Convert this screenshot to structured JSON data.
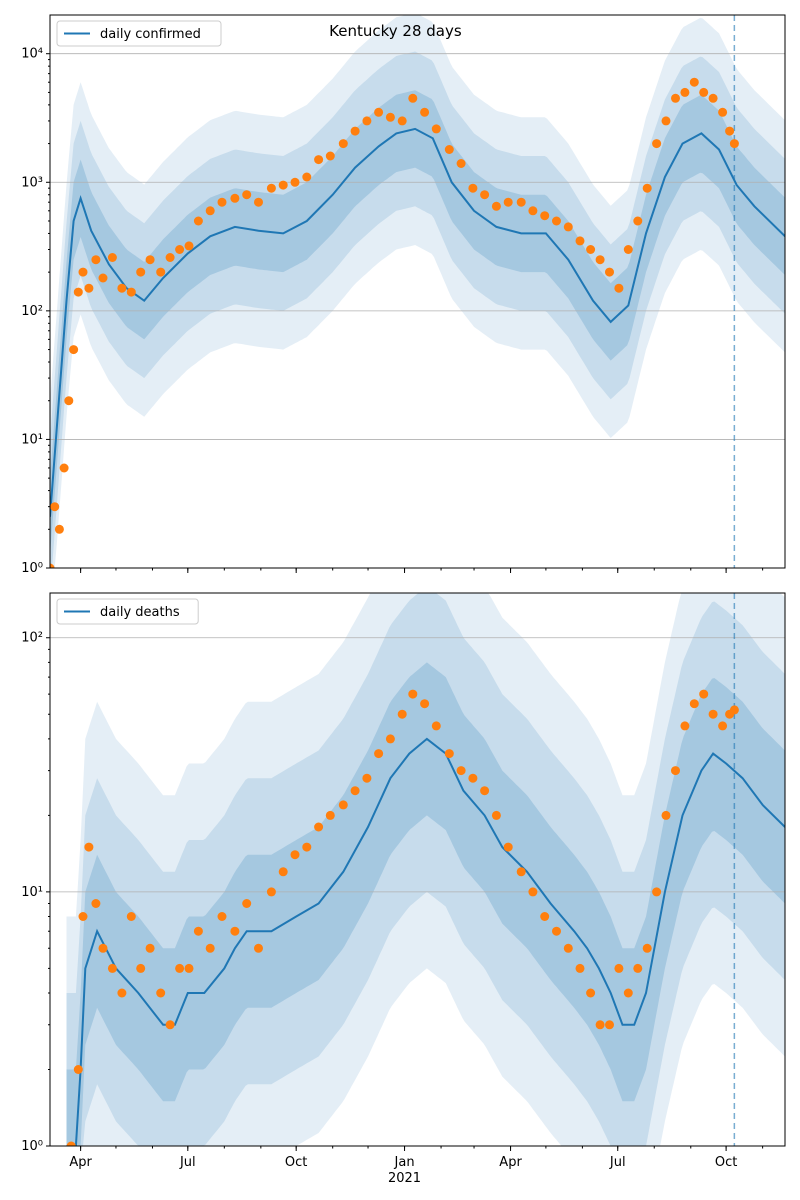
{
  "chart_data": [
    {
      "type": "line",
      "title": "Kentucky 28 days",
      "yscale": "log",
      "ylim": [
        1,
        20000
      ],
      "xlim": [
        "2020-03-06",
        "2021-11-20"
      ],
      "grid": "horizontal",
      "legend_position": "top-left",
      "x_ticks": [
        {
          "date": "2020-04-01",
          "label": "Apr"
        },
        {
          "date": "2020-07-01",
          "label": "Jul"
        },
        {
          "date": "2020-10-01",
          "label": "Oct"
        },
        {
          "date": "2021-01-01",
          "label": "Jan"
        },
        {
          "date": "2021-04-01",
          "label": "Apr"
        },
        {
          "date": "2021-07-01",
          "label": "Jul"
        },
        {
          "date": "2021-10-01",
          "label": "Oct"
        }
      ],
      "x_year_label": "",
      "y_ticks": [
        {
          "value": 1,
          "label": "10⁰"
        },
        {
          "value": 10,
          "label": "10¹"
        },
        {
          "value": 100,
          "label": "10²"
        },
        {
          "value": 1000,
          "label": "10³"
        },
        {
          "value": 10000,
          "label": "10⁴"
        }
      ],
      "vline_date": "2021-10-08",
      "colors": {
        "line": "#1f77b4",
        "points": "#ff7f0e"
      },
      "series": [
        {
          "name": "daily confirmed",
          "kind": "model_line",
          "x": [
            "2020-03-06",
            "2020-03-20",
            "2020-03-26",
            "2020-04-01",
            "2020-04-10",
            "2020-04-25",
            "2020-05-10",
            "2020-05-25",
            "2020-06-10",
            "2020-07-01",
            "2020-07-20",
            "2020-08-10",
            "2020-08-30",
            "2020-09-20",
            "2020-10-10",
            "2020-11-01",
            "2020-11-20",
            "2020-12-10",
            "2020-12-25",
            "2021-01-10",
            "2021-01-25",
            "2021-02-10",
            "2021-03-01",
            "2021-03-20",
            "2021-04-10",
            "2021-05-01",
            "2021-05-20",
            "2021-06-10",
            "2021-06-25",
            "2021-07-10",
            "2021-07-25",
            "2021-08-10",
            "2021-08-25",
            "2021-09-10",
            "2021-09-25",
            "2021-10-10",
            "2021-10-25",
            "2021-11-20"
          ],
          "y": [
            2.5,
            120,
            500,
            750,
            420,
            230,
            150,
            120,
            180,
            280,
            380,
            450,
            420,
            400,
            500,
            800,
            1300,
            1900,
            2400,
            2600,
            2200,
            1000,
            600,
            450,
            400,
            400,
            250,
            120,
            82,
            110,
            400,
            1100,
            2000,
            2400,
            1800,
            950,
            650,
            380
          ]
        },
        {
          "name": "",
          "kind": "observed_points",
          "x": [
            "2020-03-06",
            "2020-03-10",
            "2020-03-14",
            "2020-03-18",
            "2020-03-22",
            "2020-03-26",
            "2020-03-30",
            "2020-04-03",
            "2020-04-08",
            "2020-04-14",
            "2020-04-20",
            "2020-04-28",
            "2020-05-06",
            "2020-05-14",
            "2020-05-22",
            "2020-05-30",
            "2020-06-08",
            "2020-06-16",
            "2020-06-24",
            "2020-07-02",
            "2020-07-10",
            "2020-07-20",
            "2020-07-30",
            "2020-08-10",
            "2020-08-20",
            "2020-08-30",
            "2020-09-10",
            "2020-09-20",
            "2020-09-30",
            "2020-10-10",
            "2020-10-20",
            "2020-10-30",
            "2020-11-10",
            "2020-11-20",
            "2020-11-30",
            "2020-12-10",
            "2020-12-20",
            "2020-12-30",
            "2021-01-08",
            "2021-01-18",
            "2021-01-28",
            "2021-02-08",
            "2021-02-18",
            "2021-02-28",
            "2021-03-10",
            "2021-03-20",
            "2021-03-30",
            "2021-04-10",
            "2021-04-20",
            "2021-04-30",
            "2021-05-10",
            "2021-05-20",
            "2021-05-30",
            "2021-06-08",
            "2021-06-16",
            "2021-06-24",
            "2021-07-02",
            "2021-07-10",
            "2021-07-18",
            "2021-07-26",
            "2021-08-03",
            "2021-08-11",
            "2021-08-19",
            "2021-08-27",
            "2021-09-04",
            "2021-09-12",
            "2021-09-20",
            "2021-09-28",
            "2021-10-04",
            "2021-10-08"
          ],
          "y": [
            1,
            3,
            2,
            6,
            20,
            50,
            140,
            200,
            150,
            250,
            180,
            260,
            150,
            140,
            200,
            250,
            200,
            260,
            300,
            320,
            500,
            600,
            700,
            750,
            800,
            700,
            900,
            950,
            1000,
            1100,
            1500,
            1600,
            2000,
            2500,
            3000,
            3500,
            3200,
            3000,
            4500,
            3500,
            2600,
            1800,
            1400,
            900,
            800,
            650,
            700,
            700,
            600,
            550,
            500,
            450,
            350,
            300,
            250,
            200,
            150,
            300,
            500,
            900,
            2000,
            3000,
            4500,
            5000,
            6000,
            5000,
            4500,
            3500,
            2500,
            2000
          ]
        }
      ]
    },
    {
      "type": "line",
      "title": "",
      "yscale": "log",
      "ylim": [
        1,
        150
      ],
      "xlim": [
        "2020-03-06",
        "2021-11-20"
      ],
      "grid": "horizontal",
      "legend_position": "top-left",
      "x_ticks": [
        {
          "date": "2020-04-01",
          "label": "Apr"
        },
        {
          "date": "2020-07-01",
          "label": "Jul"
        },
        {
          "date": "2020-10-01",
          "label": "Oct"
        },
        {
          "date": "2021-01-01",
          "label": "Jan"
        },
        {
          "date": "2021-04-01",
          "label": "Apr"
        },
        {
          "date": "2021-07-01",
          "label": "Jul"
        },
        {
          "date": "2021-10-01",
          "label": "Oct"
        }
      ],
      "x_year_label": "2021",
      "y_ticks": [
        {
          "value": 1,
          "label": "10⁰"
        },
        {
          "value": 10,
          "label": "10¹"
        },
        {
          "value": 100,
          "label": "10²"
        }
      ],
      "vline_date": "2021-10-08",
      "colors": {
        "line": "#1f77b4",
        "points": "#ff7f0e"
      },
      "series": [
        {
          "name": "daily deaths",
          "kind": "model_line",
          "x": [
            "2020-03-20",
            "2020-03-28",
            "2020-04-01",
            "2020-04-05",
            "2020-04-15",
            "2020-05-01",
            "2020-05-20",
            "2020-06-10",
            "2020-06-20",
            "2020-07-01",
            "2020-07-15",
            "2020-08-01",
            "2020-08-10",
            "2020-08-20",
            "2020-09-10",
            "2020-10-01",
            "2020-10-20",
            "2020-11-10",
            "2020-12-01",
            "2020-12-20",
            "2021-01-05",
            "2021-01-20",
            "2021-02-05",
            "2021-02-20",
            "2021-03-10",
            "2021-03-25",
            "2021-04-15",
            "2021-05-05",
            "2021-05-25",
            "2021-06-05",
            "2021-06-15",
            "2021-06-25",
            "2021-07-05",
            "2021-07-15",
            "2021-07-25",
            "2021-08-10",
            "2021-08-25",
            "2021-09-10",
            "2021-09-20",
            "2021-10-01",
            "2021-10-15",
            "2021-11-01",
            "2021-11-20"
          ],
          "y": [
            1,
            1,
            2,
            5,
            7,
            5,
            4,
            3,
            3,
            4,
            4,
            5,
            6,
            7,
            7,
            8,
            9,
            12,
            18,
            28,
            35,
            40,
            35,
            25,
            20,
            15,
            12,
            9,
            7,
            6,
            5,
            4,
            3,
            3,
            4,
            10,
            20,
            30,
            35,
            32,
            28,
            22,
            18
          ]
        },
        {
          "name": "",
          "kind": "observed_points",
          "x": [
            "2020-03-24",
            "2020-03-30",
            "2020-04-03",
            "2020-04-08",
            "2020-04-14",
            "2020-04-20",
            "2020-04-28",
            "2020-05-06",
            "2020-05-14",
            "2020-05-22",
            "2020-05-30",
            "2020-06-08",
            "2020-06-16",
            "2020-06-24",
            "2020-07-02",
            "2020-07-10",
            "2020-07-20",
            "2020-07-30",
            "2020-08-10",
            "2020-08-20",
            "2020-08-30",
            "2020-09-10",
            "2020-09-20",
            "2020-09-30",
            "2020-10-10",
            "2020-10-20",
            "2020-10-30",
            "2020-11-10",
            "2020-11-20",
            "2020-11-30",
            "2020-12-10",
            "2020-12-20",
            "2020-12-30",
            "2021-01-08",
            "2021-01-18",
            "2021-01-28",
            "2021-02-08",
            "2021-02-18",
            "2021-02-28",
            "2021-03-10",
            "2021-03-20",
            "2021-03-30",
            "2021-04-10",
            "2021-04-20",
            "2021-04-30",
            "2021-05-10",
            "2021-05-20",
            "2021-05-30",
            "2021-06-08",
            "2021-06-16",
            "2021-06-24",
            "2021-07-02",
            "2021-07-10",
            "2021-07-18",
            "2021-07-26",
            "2021-08-03",
            "2021-08-11",
            "2021-08-19",
            "2021-08-27",
            "2021-09-04",
            "2021-09-12",
            "2021-09-20",
            "2021-09-28",
            "2021-10-04",
            "2021-10-08"
          ],
          "y": [
            1,
            2,
            8,
            15,
            9,
            6,
            5,
            4,
            8,
            5,
            6,
            4,
            3,
            5,
            5,
            7,
            6,
            8,
            7,
            9,
            6,
            10,
            12,
            14,
            15,
            18,
            20,
            22,
            25,
            28,
            35,
            40,
            50,
            60,
            55,
            45,
            35,
            30,
            28,
            25,
            20,
            15,
            12,
            10,
            8,
            7,
            6,
            5,
            4,
            3,
            3,
            5,
            4,
            5,
            6,
            10,
            20,
            30,
            45,
            55,
            60,
            50,
            45,
            50,
            52
          ]
        }
      ]
    }
  ]
}
